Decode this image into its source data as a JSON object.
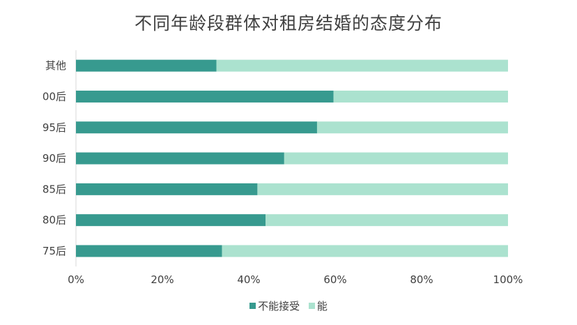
{
  "chart_data": {
    "type": "bar",
    "orientation": "horizontal",
    "stacked": "percent",
    "title": "不同年龄段群体对租房结婚的态度分布",
    "categories": [
      "其他",
      "00后",
      "95后",
      "90后",
      "85后",
      "80后",
      "75后"
    ],
    "series": [
      {
        "name": "不能接受",
        "color": "#379A8F",
        "values": [
          32.5,
          59.6,
          55.8,
          48.2,
          42.0,
          43.9,
          33.8
        ]
      },
      {
        "name": "能",
        "color": "#ABE2CF",
        "values": [
          67.5,
          40.4,
          44.2,
          51.8,
          58.0,
          56.1,
          66.2
        ]
      }
    ],
    "x_ticks": [
      "0%",
      "20%",
      "40%",
      "60%",
      "80%",
      "100%"
    ],
    "xlim": [
      0,
      100
    ],
    "grid": false,
    "legend_position": "bottom"
  }
}
